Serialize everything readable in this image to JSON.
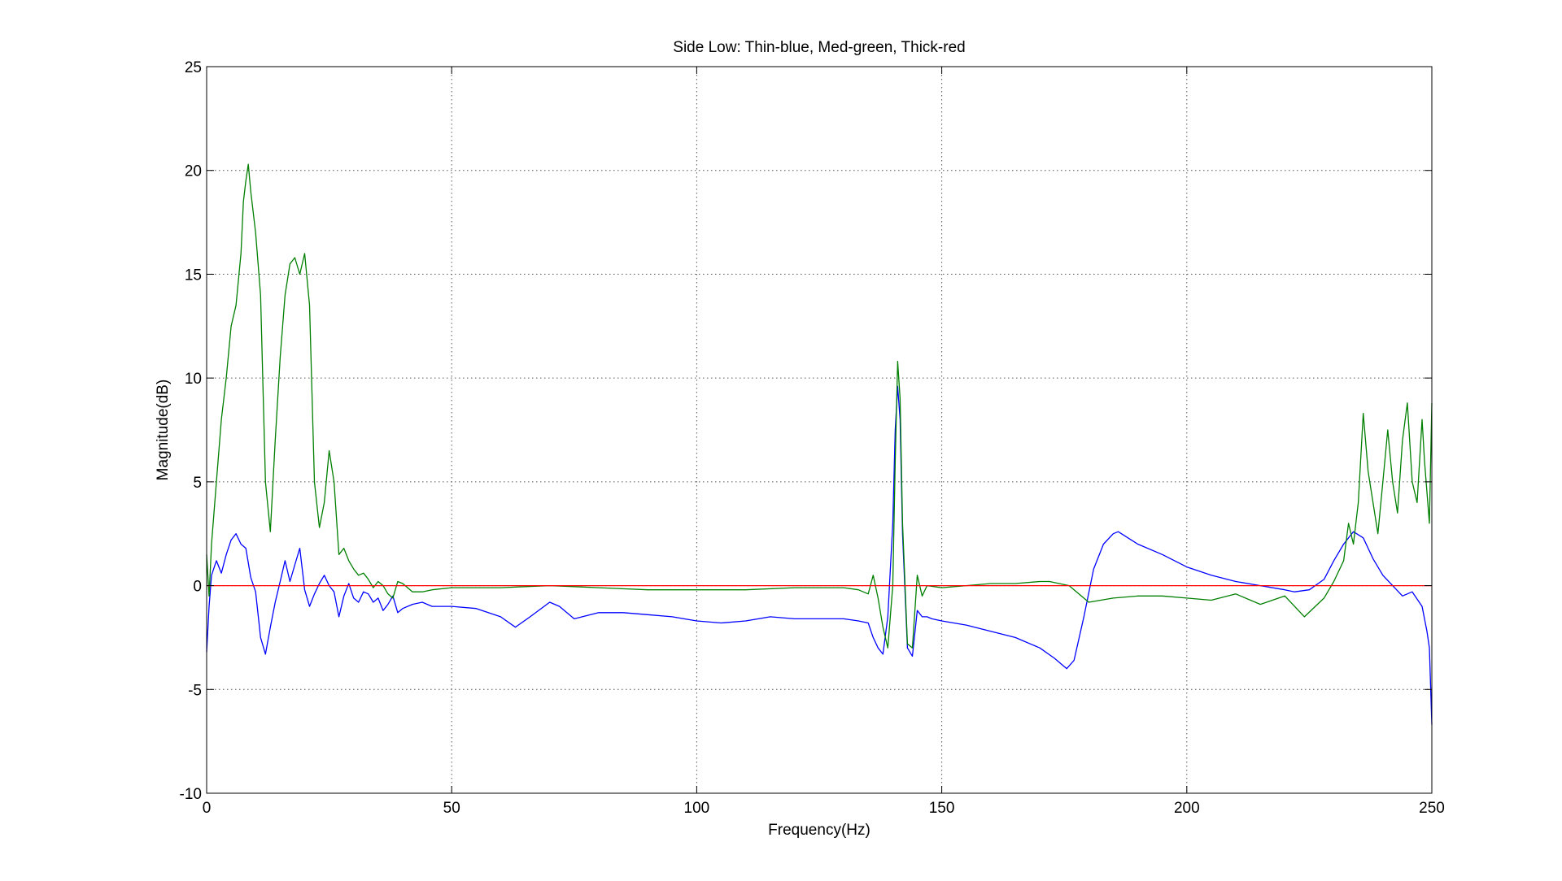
{
  "chart_data": {
    "type": "line",
    "title": "Side Low: Thin-blue, Med-green, Thick-red",
    "xlabel": "Frequency(Hz)",
    "ylabel": "Magnitude(dB)",
    "xlim": [
      0,
      250
    ],
    "ylim": [
      -10,
      25
    ],
    "xticks": [
      0,
      50,
      100,
      150,
      200,
      250
    ],
    "yticks": [
      -10,
      -5,
      0,
      5,
      10,
      15,
      20,
      25
    ],
    "xtick_labels": [
      "0",
      "50",
      "100",
      "150",
      "200",
      "250"
    ],
    "ytick_labels": [
      "-10",
      "-5",
      "0",
      "5",
      "10",
      "15",
      "20",
      "25"
    ],
    "grid": true,
    "legend": "none",
    "series": [
      {
        "color": "#0000ff",
        "x": [
          0,
          0.5,
          1,
          2,
          3,
          4,
          5,
          6,
          7,
          8,
          9,
          10,
          11,
          12,
          13,
          14,
          15,
          16,
          17,
          18,
          19,
          20,
          21,
          22,
          23,
          24,
          25,
          26,
          27,
          28,
          29,
          30,
          31,
          32,
          33,
          34,
          35,
          36,
          37,
          38,
          39,
          40,
          42,
          44,
          46,
          50,
          55,
          60,
          63,
          66,
          70,
          72,
          75,
          80,
          85,
          90,
          95,
          100,
          105,
          110,
          115,
          120,
          125,
          130,
          133,
          135,
          136,
          137,
          138,
          139,
          140,
          140.5,
          141,
          141.5,
          142,
          143,
          144,
          145,
          146,
          147,
          148,
          150,
          155,
          160,
          165,
          170,
          173,
          175.5,
          177,
          179,
          181,
          183,
          185,
          186,
          188,
          190,
          195,
          200,
          205,
          210,
          215,
          220,
          222,
          225,
          228,
          230,
          232,
          234,
          236,
          238,
          240,
          242,
          244,
          246,
          248,
          249,
          249.5,
          250
        ],
        "y": [
          -3.2,
          -1.0,
          0.5,
          1.2,
          0.6,
          1.5,
          2.2,
          2.5,
          2.0,
          1.8,
          0.4,
          -0.3,
          -2.5,
          -3.3,
          -2.0,
          -0.8,
          0.2,
          1.2,
          0.2,
          1.0,
          1.8,
          -0.2,
          -1.0,
          -0.4,
          0.1,
          0.5,
          0.0,
          -0.3,
          -1.5,
          -0.5,
          0.1,
          -0.6,
          -0.8,
          -0.3,
          -0.4,
          -0.8,
          -0.6,
          -1.2,
          -0.9,
          -0.5,
          -1.3,
          -1.1,
          -0.9,
          -0.8,
          -1.0,
          -1.0,
          -1.1,
          -1.5,
          -2.0,
          -1.5,
          -0.8,
          -1.0,
          -1.6,
          -1.3,
          -1.3,
          -1.4,
          -1.5,
          -1.7,
          -1.8,
          -1.7,
          -1.5,
          -1.6,
          -1.6,
          -1.6,
          -1.7,
          -1.8,
          -2.5,
          -3.0,
          -3.3,
          -1.5,
          3.0,
          7.5,
          9.6,
          8.0,
          2.5,
          -3.0,
          -3.4,
          -1.2,
          -1.5,
          -1.5,
          -1.6,
          -1.7,
          -1.9,
          -2.2,
          -2.5,
          -3.0,
          -3.5,
          -4.0,
          -3.6,
          -1.5,
          0.8,
          2.0,
          2.5,
          2.6,
          2.3,
          2.0,
          1.5,
          0.9,
          0.5,
          0.2,
          0.0,
          -0.2,
          -0.3,
          -0.2,
          0.3,
          1.2,
          2.0,
          2.6,
          2.3,
          1.3,
          0.5,
          0.0,
          -0.5,
          -0.3,
          -1.0,
          -2.2,
          -3.0,
          -6.7
        ]
      },
      {
        "color": "#007f00",
        "x": [
          0,
          0.5,
          1,
          2,
          3,
          4,
          5,
          6,
          7,
          7.5,
          8,
          8.5,
          9,
          10,
          11,
          12,
          13,
          14,
          15,
          16,
          17,
          18,
          19,
          20,
          21,
          22,
          23,
          24,
          25,
          26,
          27,
          28,
          29,
          30,
          31,
          32,
          33,
          34,
          35,
          36,
          37,
          38,
          39,
          40,
          42,
          44,
          46,
          50,
          55,
          60,
          65,
          70,
          75,
          80,
          90,
          100,
          110,
          120,
          130,
          133,
          135,
          136,
          137,
          138,
          139,
          140,
          140.5,
          141,
          141.5,
          142,
          143,
          144,
          145,
          146,
          147,
          150,
          155,
          160,
          165,
          170,
          172,
          176,
          180,
          185,
          190,
          195,
          200,
          205,
          210,
          215,
          220,
          224,
          228,
          230,
          232,
          233,
          234,
          235,
          236,
          237,
          238,
          239,
          240,
          241,
          242,
          243,
          244,
          245,
          246,
          247,
          248,
          248.5,
          249,
          249.5,
          250
        ],
        "y": [
          1.5,
          -0.5,
          2.0,
          5.0,
          8.0,
          10.0,
          12.5,
          13.5,
          16.0,
          18.5,
          19.5,
          20.3,
          19.0,
          17.0,
          14.0,
          5.0,
          2.6,
          7.0,
          11.0,
          14.0,
          15.5,
          15.8,
          15.0,
          16.0,
          13.5,
          5.0,
          2.8,
          4.0,
          6.5,
          5.0,
          1.5,
          1.8,
          1.2,
          0.8,
          0.5,
          0.6,
          0.3,
          -0.1,
          0.2,
          0.0,
          -0.4,
          -0.6,
          0.2,
          0.1,
          -0.3,
          -0.3,
          -0.2,
          -0.1,
          -0.1,
          -0.1,
          -0.05,
          0.0,
          -0.05,
          -0.1,
          -0.2,
          -0.2,
          -0.2,
          -0.1,
          -0.1,
          -0.2,
          -0.4,
          0.5,
          -0.6,
          -2.0,
          -3.0,
          0.0,
          6.0,
          10.8,
          9.0,
          3.0,
          -2.8,
          -3.0,
          0.5,
          -0.5,
          0.0,
          -0.1,
          0.0,
          0.1,
          0.1,
          0.2,
          0.2,
          0.0,
          -0.8,
          -0.6,
          -0.5,
          -0.5,
          -0.6,
          -0.7,
          -0.4,
          -0.9,
          -0.5,
          -1.5,
          -0.6,
          0.2,
          1.2,
          3.0,
          2.0,
          4.0,
          8.3,
          5.5,
          4.0,
          2.5,
          5.0,
          7.5,
          5.0,
          3.5,
          7.0,
          8.8,
          5.0,
          4.0,
          8.0,
          6.0,
          4.5,
          3.0,
          8.8
        ]
      },
      {
        "color": "#ff0000",
        "x": [
          0,
          250
        ],
        "y": [
          0,
          0
        ]
      }
    ]
  }
}
